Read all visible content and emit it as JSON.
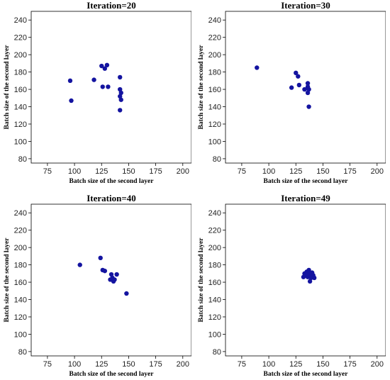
{
  "chart_data": [
    {
      "type": "scatter",
      "title": "Iteration=20",
      "xlabel": "Batch size of the second layer",
      "ylabel": "Batch size of the second layer",
      "xlim": [
        60,
        208
      ],
      "ylim": [
        75,
        250
      ],
      "xticks": [
        75,
        100,
        125,
        150,
        175,
        200
      ],
      "yticks": [
        80,
        100,
        120,
        140,
        160,
        180,
        200,
        220,
        240
      ],
      "series": [
        {
          "color": "#1414a0",
          "points": [
            [
              96,
              170
            ],
            [
              97,
              147
            ],
            [
              118,
              171
            ],
            [
              125,
              187
            ],
            [
              126,
              163
            ],
            [
              128,
              184
            ],
            [
              130,
              188
            ],
            [
              131,
              163
            ],
            [
              142,
              174
            ],
            [
              142,
              160
            ],
            [
              143,
              156
            ],
            [
              142,
              152
            ],
            [
              143,
              148
            ],
            [
              142,
              136
            ]
          ]
        }
      ]
    },
    {
      "type": "scatter",
      "title": "Iteration=30",
      "xlabel": "Batch size of the second layer",
      "ylabel": "Batch size of the second layer",
      "xlim": [
        60,
        208
      ],
      "ylim": [
        75,
        250
      ],
      "xticks": [
        75,
        100,
        125,
        150,
        175,
        200
      ],
      "yticks": [
        80,
        100,
        120,
        140,
        160,
        180,
        200,
        220,
        240
      ],
      "series": [
        {
          "color": "#1414a0",
          "points": [
            [
              89,
              185
            ],
            [
              125,
              179
            ],
            [
              127,
              175
            ],
            [
              121,
              162
            ],
            [
              128,
              165
            ],
            [
              133,
              160
            ],
            [
              136,
              167
            ],
            [
              136,
              163
            ],
            [
              137,
              160
            ],
            [
              136,
              156
            ],
            [
              137,
              140
            ]
          ]
        }
      ]
    },
    {
      "type": "scatter",
      "title": "Iteration=40",
      "xlabel": "Batch size of the second layer",
      "ylabel": "Batch size of the second layer",
      "xlim": [
        60,
        208
      ],
      "ylim": [
        75,
        250
      ],
      "xticks": [
        75,
        100,
        125,
        150,
        175,
        200
      ],
      "yticks": [
        80,
        100,
        120,
        140,
        160,
        180,
        200,
        220,
        240
      ],
      "series": [
        {
          "color": "#1414a0",
          "points": [
            [
              105,
              180
            ],
            [
              124,
              188
            ],
            [
              126,
              174
            ],
            [
              128,
              173
            ],
            [
              133,
              163
            ],
            [
              134,
              169
            ],
            [
              135,
              165
            ],
            [
              136,
              161
            ],
            [
              137,
              163
            ],
            [
              139,
              169
            ],
            [
              148,
              147
            ]
          ]
        }
      ]
    },
    {
      "type": "scatter",
      "title": "Iteration=49",
      "xlabel": "Batch size of the second layer",
      "ylabel": "Batch size of the second layer",
      "xlim": [
        60,
        208
      ],
      "ylim": [
        75,
        250
      ],
      "xticks": [
        75,
        100,
        125,
        150,
        175,
        200
      ],
      "yticks": [
        80,
        100,
        120,
        140,
        160,
        180,
        200,
        220,
        240
      ],
      "series": [
        {
          "color": "#1414a0",
          "points": [
            [
              132,
              166
            ],
            [
              133,
              170
            ],
            [
              134,
              168
            ],
            [
              135,
              172
            ],
            [
              136,
              169
            ],
            [
              136,
              166
            ],
            [
              137,
              174
            ],
            [
              138,
              170
            ],
            [
              138,
              167
            ],
            [
              139,
              165
            ],
            [
              140,
              171
            ],
            [
              141,
              168
            ],
            [
              142,
              165
            ],
            [
              138,
              161
            ]
          ]
        }
      ]
    }
  ]
}
